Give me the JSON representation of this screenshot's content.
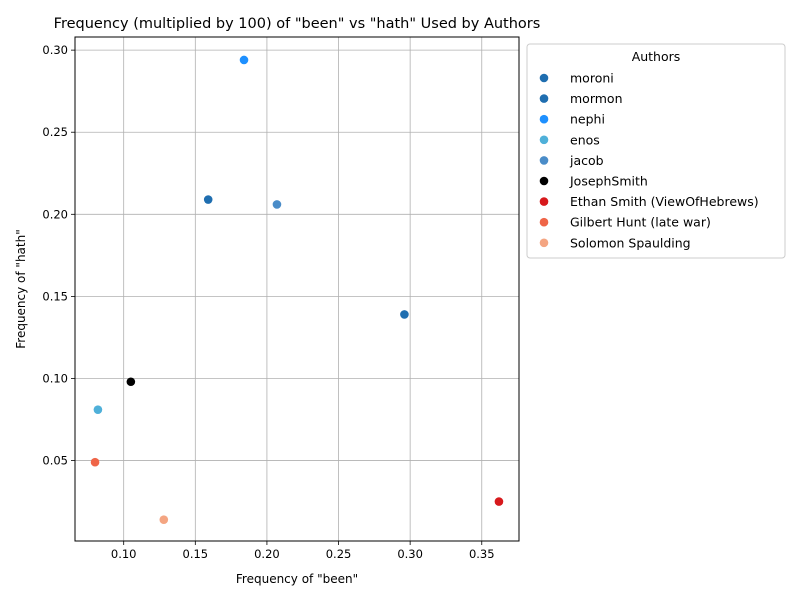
{
  "chart_data": {
    "type": "scatter",
    "title": "Frequency (multiplied by 100) of \"been\" vs \"hath\" Used by Authors",
    "xlabel": "Frequency of \"been\"",
    "ylabel": "Frequency of \"hath\"",
    "xlim": [
      0.066,
      0.376
    ],
    "ylim": [
      0.001,
      0.308
    ],
    "xticks": [
      0.1,
      0.15,
      0.2,
      0.25,
      0.3,
      0.35
    ],
    "yticks": [
      0.05,
      0.1,
      0.15,
      0.2,
      0.25,
      0.3
    ],
    "xtick_labels": [
      "0.10",
      "0.15",
      "0.20",
      "0.25",
      "0.30",
      "0.35"
    ],
    "ytick_labels": [
      "0.05",
      "0.10",
      "0.15",
      "0.20",
      "0.25",
      "0.30"
    ],
    "grid": true,
    "legend_title": "Authors",
    "legend_placement": "outside-upper-right",
    "series": [
      {
        "name": "moroni",
        "color": "#1f6eb0",
        "points": [
          [
            0.296,
            0.139
          ]
        ]
      },
      {
        "name": "mormon",
        "color": "#1f6eb0",
        "points": [
          [
            0.159,
            0.209
          ]
        ]
      },
      {
        "name": "nephi",
        "color": "#1e90ff",
        "points": [
          [
            0.184,
            0.294
          ]
        ]
      },
      {
        "name": "enos",
        "color": "#4fb0d9",
        "points": [
          [
            0.082,
            0.081
          ]
        ]
      },
      {
        "name": "jacob",
        "color": "#4a8cc8",
        "points": [
          [
            0.207,
            0.206
          ]
        ]
      },
      {
        "name": "JosephSmith",
        "color": "#000000",
        "points": [
          [
            0.105,
            0.098
          ]
        ]
      },
      {
        "name": "Ethan Smith (ViewOfHebrews)",
        "color": "#d7191c",
        "points": [
          [
            0.362,
            0.025
          ]
        ]
      },
      {
        "name": "Gilbert Hunt (late war)",
        "color": "#ef6548",
        "points": [
          [
            0.08,
            0.049
          ]
        ]
      },
      {
        "name": "Solomon Spaulding",
        "color": "#f4a582",
        "points": [
          [
            0.128,
            0.014
          ]
        ]
      }
    ]
  }
}
